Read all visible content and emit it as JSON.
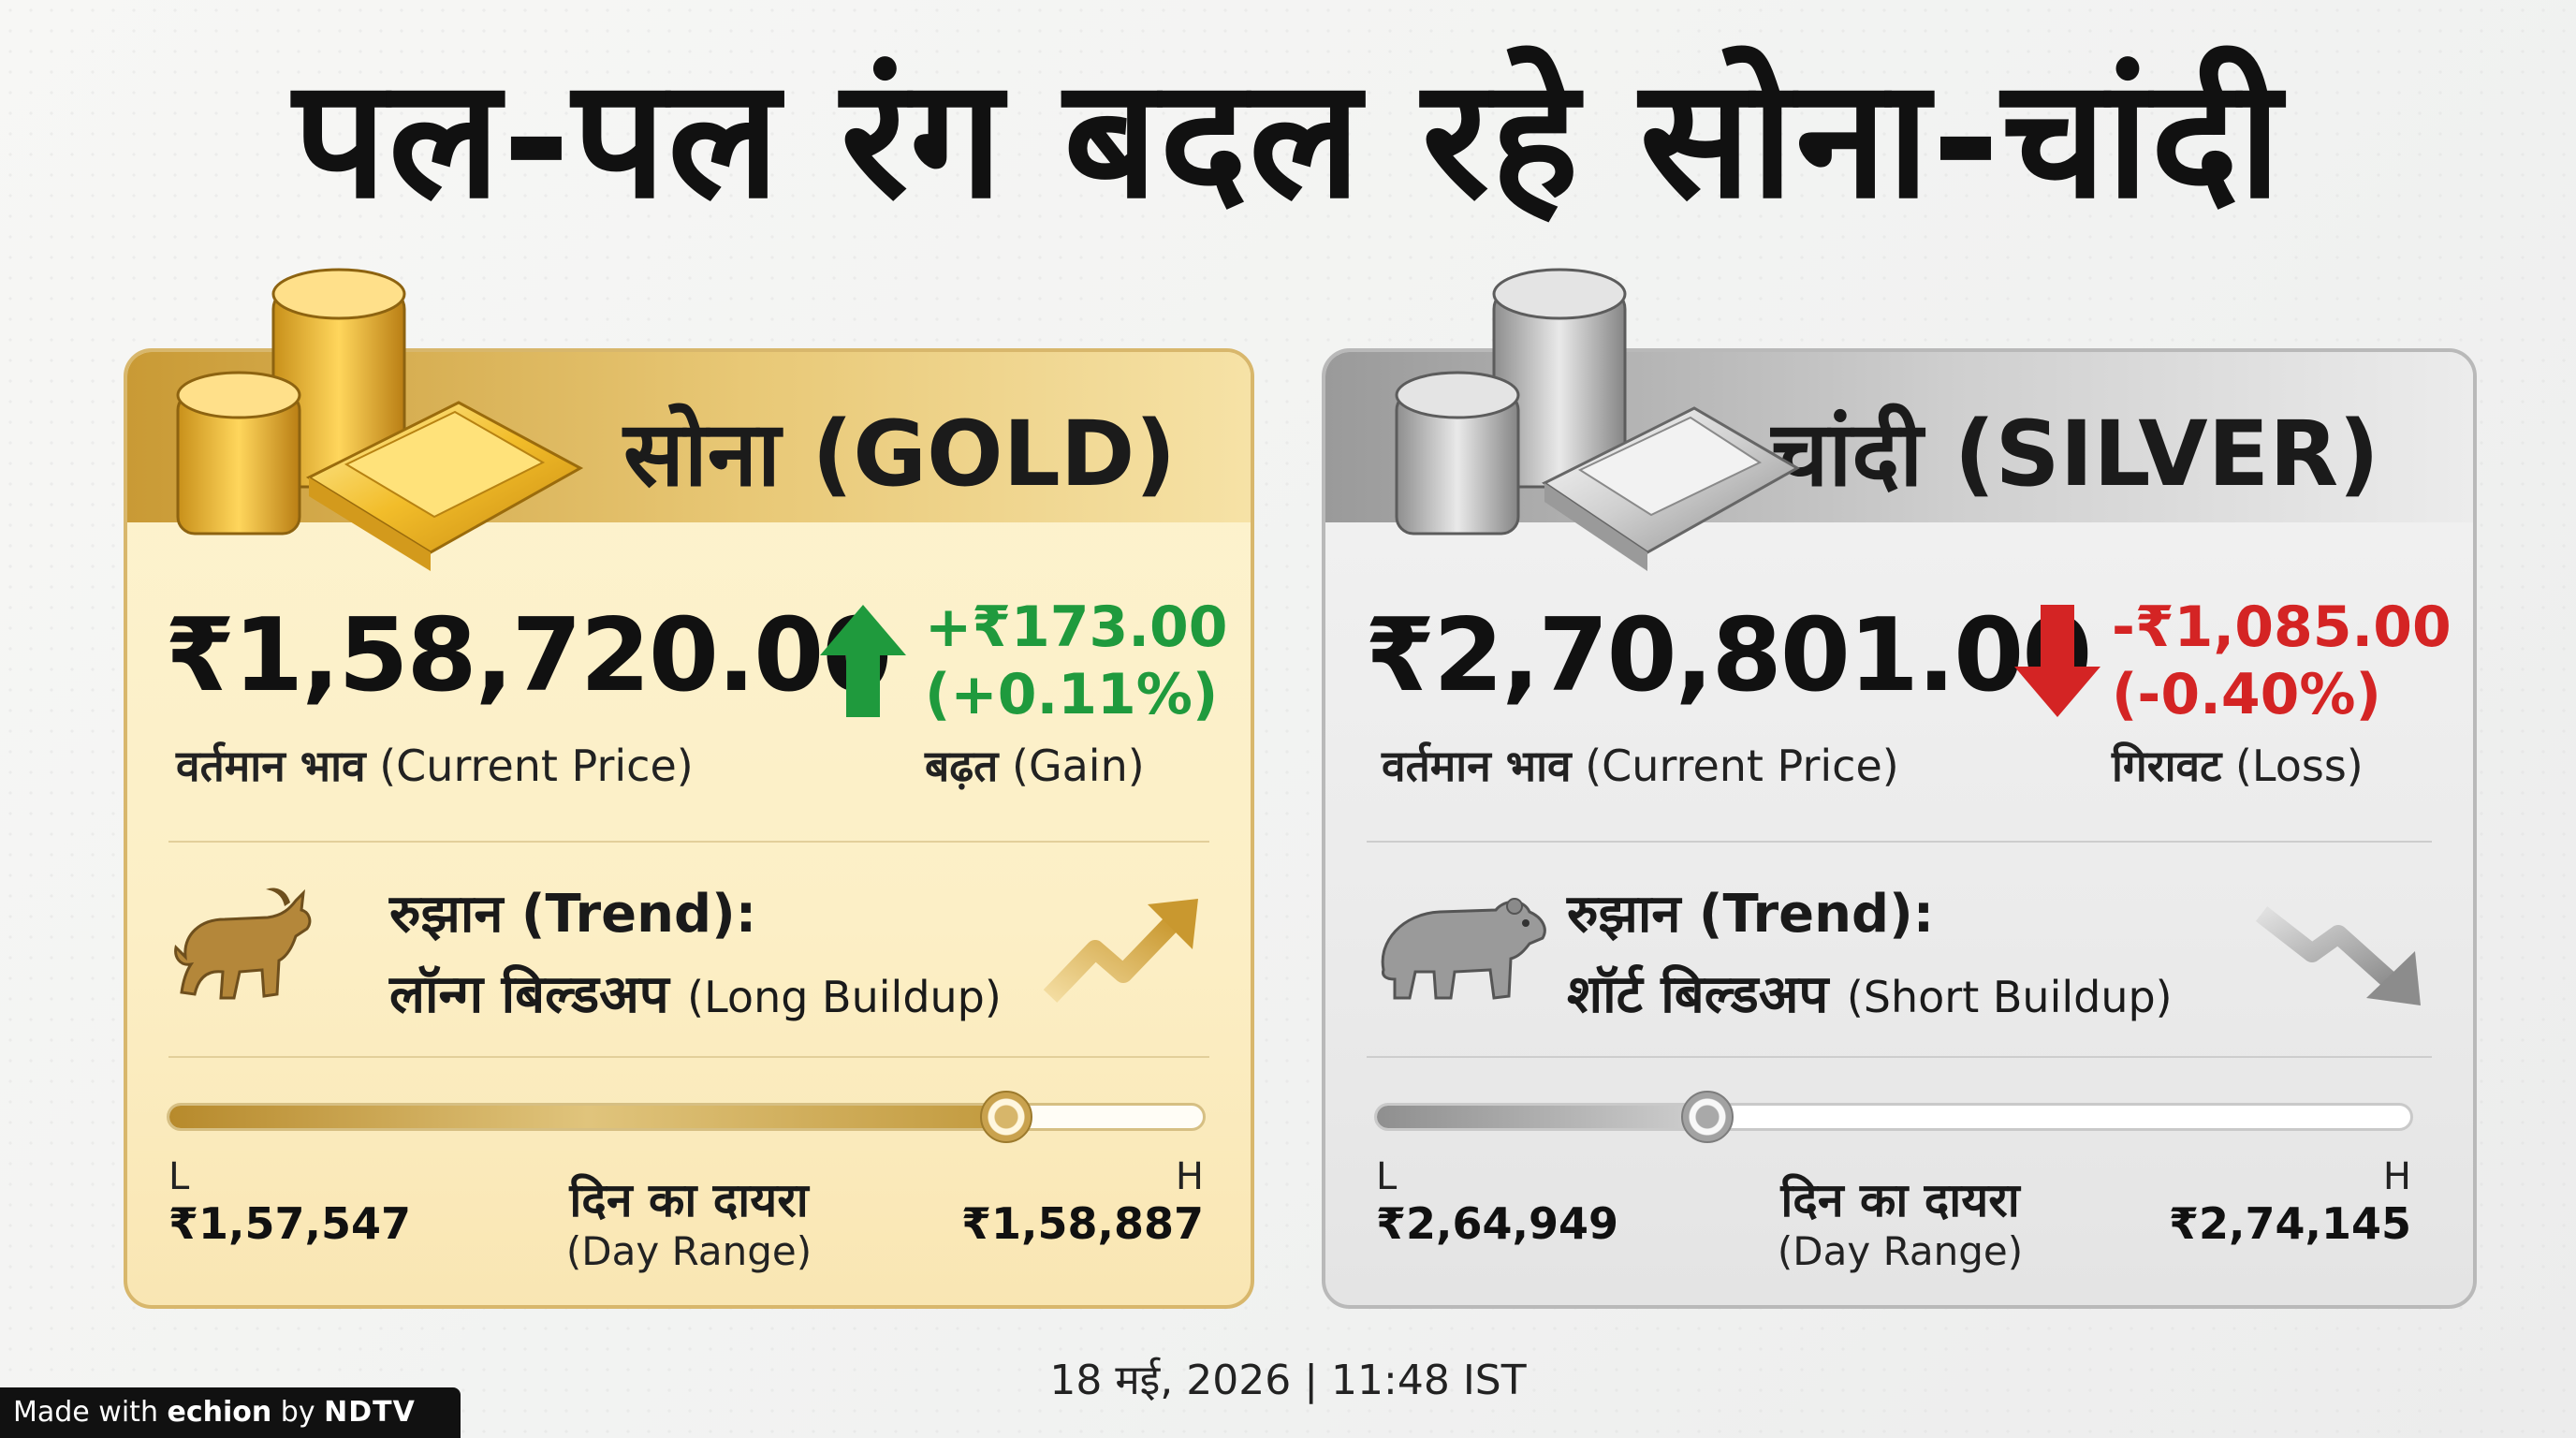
{
  "title": "पल-पल रंग बदल रहे सोना-चांदी",
  "gold": {
    "heading": "सोना (GOLD)",
    "price": "₹1,58,720.00",
    "price_label_hi": "वर्तमान भाव",
    "price_label_en": "(Current Price)",
    "change_amount": "+₹173.00",
    "change_percent": "(+0.11%)",
    "change_label_hi": "बढ़त",
    "change_label_en": "(Gain)",
    "trend_title": "रुझान (Trend):",
    "trend_value_hi": "लॉन्ग बिल्डअप",
    "trend_value_en": "(Long Buildup)",
    "low_tag": "L",
    "low_value": "₹1,57,547",
    "high_tag": "H",
    "high_value": "₹1,58,887",
    "range_title": "दिन का दायरा",
    "range_sub": "(Day Range)",
    "range_position": 0.81,
    "icons": [
      "gold-coins-icon",
      "gold-bar-icon",
      "bull-icon",
      "trend-up-arrow-icon",
      "up-arrow-icon"
    ],
    "change_color": "#1f9a3d"
  },
  "silver": {
    "heading": "चांदी (SILVER)",
    "price": "₹2,70,801.00",
    "price_label_hi": "वर्तमान भाव",
    "price_label_en": "(Current Price)",
    "change_amount": "-₹1,085.00",
    "change_percent": "(-0.40%)",
    "change_label_hi": "गिरावट",
    "change_label_en": "(Loss)",
    "trend_title": "रुझान (Trend):",
    "trend_value_hi": "शॉर्ट बिल्डअप",
    "trend_value_en": "(Short Buildup)",
    "low_tag": "L",
    "low_value": "₹2,64,949",
    "high_tag": "H",
    "high_value": "₹2,74,145",
    "range_title": "दिन का दायरा",
    "range_sub": "(Day Range)",
    "range_position": 0.32,
    "icons": [
      "silver-coins-icon",
      "silver-bar-icon",
      "bear-icon",
      "trend-down-arrow-icon",
      "down-arrow-icon"
    ],
    "change_color": "#d42424"
  },
  "timestamp": "18 मई, 2026 | 11:48 IST",
  "watermark": {
    "prefix": "Made with",
    "brand": "echion",
    "by": "by",
    "ndtv": "NDTV"
  }
}
